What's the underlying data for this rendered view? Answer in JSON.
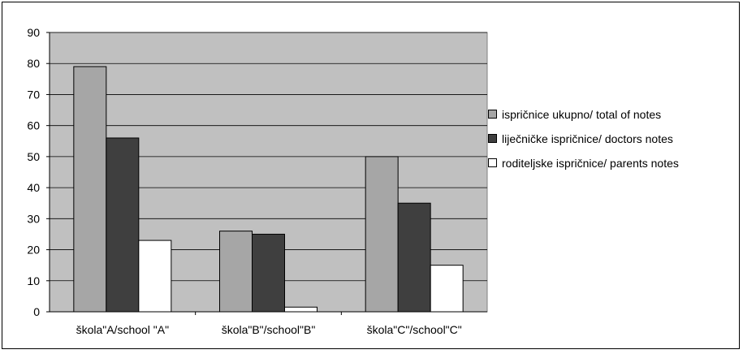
{
  "chart_data": {
    "type": "bar",
    "title": "",
    "xlabel": "",
    "ylabel": "",
    "ylim": [
      0,
      90
    ],
    "yticks": [
      0,
      10,
      20,
      30,
      40,
      50,
      60,
      70,
      80,
      90
    ],
    "grid": true,
    "legend_position": "right",
    "plot_background": "#c0c0c0",
    "categories": [
      "škola\"A/school \"A\"",
      "škola\"B\"/school\"B\"",
      "škola\"C\"/school\"C\""
    ],
    "series": [
      {
        "name": "ispričnice ukupno/ total of notes",
        "values": [
          79,
          26,
          50
        ],
        "color": "#a6a6a6"
      },
      {
        "name": "liječničke ispričnice/ doctors notes",
        "values": [
          56,
          25,
          35
        ],
        "color": "#3f3f3f"
      },
      {
        "name": "roditeljske ispričnice/ parents notes",
        "values": [
          23,
          1.5,
          15
        ],
        "color": "#ffffff"
      }
    ]
  }
}
